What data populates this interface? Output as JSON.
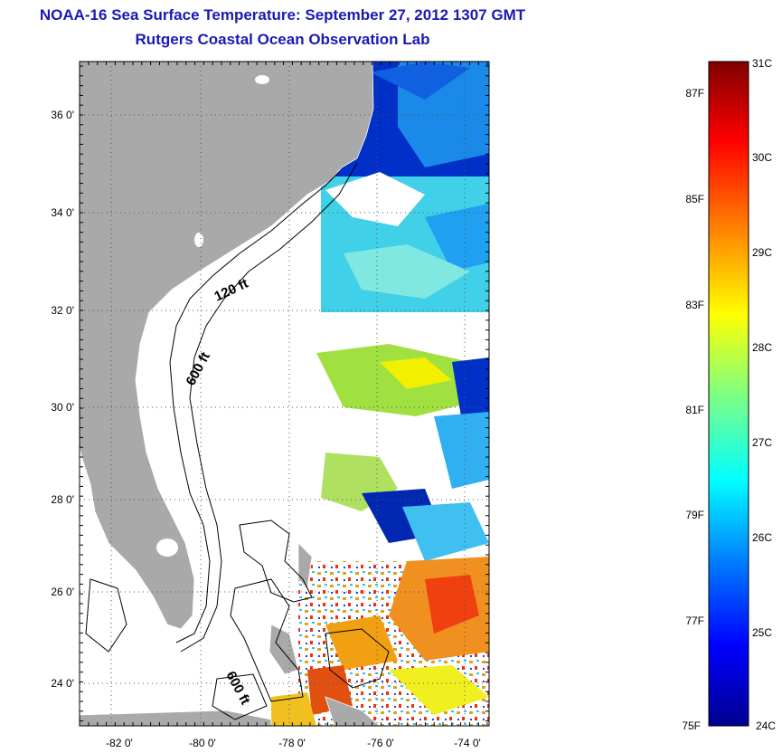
{
  "header": {
    "title": "NOAA-16 Sea Surface Temperature:  September 27, 2012 1307 GMT",
    "subtitle": "Rutgers Coastal Ocean Observation Lab"
  },
  "map": {
    "lat_labels": [
      "36 0'",
      "34 0'",
      "32 0'",
      "30 0'",
      "28 0'",
      "26 0'",
      "24 0'"
    ],
    "lon_labels": [
      "-82 0'",
      "-80 0'",
      "-78 0'",
      "-76 0'",
      "-74 0'"
    ],
    "contours": [
      "120 ft",
      "600 ft",
      "600 ft"
    ],
    "land_color": "#a9a9a9"
  },
  "colorbar": {
    "celsius_labels": [
      "31C",
      "30C",
      "29C",
      "28C",
      "27C",
      "26C",
      "25C",
      "24C"
    ],
    "fahrenheit_labels": [
      "87F",
      "85F",
      "83F",
      "81F",
      "79F",
      "77F",
      "75F"
    ],
    "colormap": [
      "#00008f",
      "#0000ff",
      "#0080ff",
      "#00ffff",
      "#80ff80",
      "#ffff00",
      "#ff8000",
      "#ff0000",
      "#800000"
    ]
  }
}
